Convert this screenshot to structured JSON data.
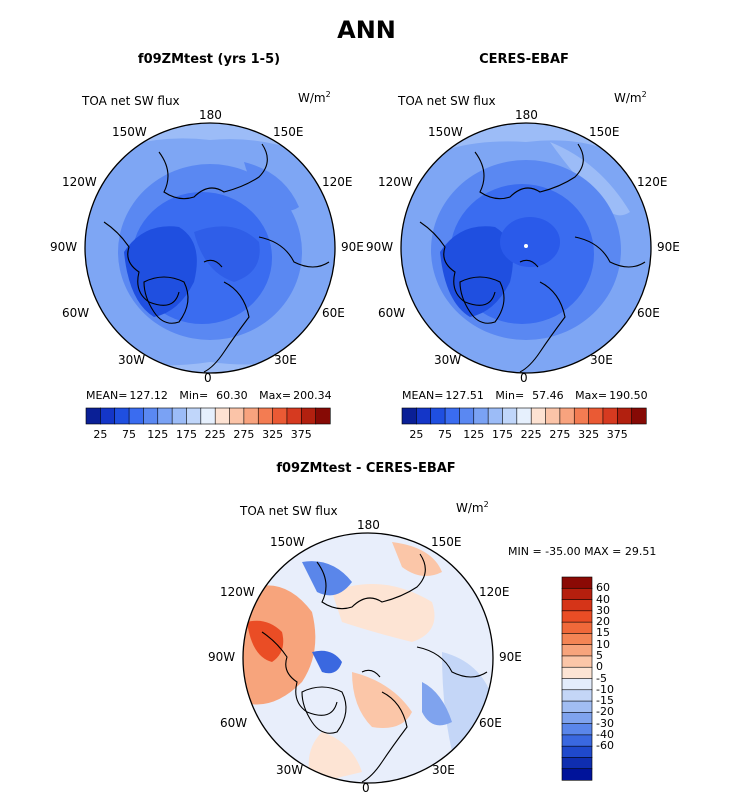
{
  "figure": {
    "title": "ANN"
  },
  "panels": [
    {
      "title": "f09ZMtest (yrs 1-5)",
      "variable": "TOA net SW flux",
      "units_base": "W/m",
      "units_exp": "2",
      "stats": {
        "mean_label": "MEAN=",
        "mean": "127.12",
        "min_label": "Min=",
        "min": "60.30",
        "max_label": "Max=",
        "max": "200.34"
      }
    },
    {
      "title": "CERES-EBAF",
      "variable": "TOA net SW flux",
      "units_base": "W/m",
      "units_exp": "2",
      "stats": {
        "mean_label": "MEAN=",
        "mean": "127.51",
        "min_label": "Min=",
        "min": "57.46",
        "max_label": "Max=",
        "max": "190.50"
      }
    },
    {
      "title": "f09ZMtest - CERES-EBAF",
      "variable": "TOA net SW flux",
      "units_base": "W/m",
      "units_exp": "2",
      "stats_text": "MIN = -35.00 MAX =   29.51"
    }
  ],
  "longitude_labels": {
    "top": "180",
    "bottom": "0",
    "e150": "150E",
    "e120": "120E",
    "e90": "90E",
    "e60": "60E",
    "e30": "30E",
    "w150": "150W",
    "w120": "120W",
    "w90": "90W",
    "w60": "60W",
    "w30": "30W"
  },
  "colorbar_main": {
    "tick_labels": [
      "25",
      "75",
      "125",
      "175",
      "225",
      "275",
      "325",
      "375"
    ],
    "colors": [
      "#0a1f96",
      "#1436c8",
      "#1f4fe0",
      "#3a6cf0",
      "#5a88f2",
      "#7aa2f4",
      "#9cbcf7",
      "#c0d6fa",
      "#e6f0fd",
      "#fde2d2",
      "#fbc4a8",
      "#f8a37e",
      "#f37c52",
      "#ea5a34",
      "#d63a20",
      "#b2200f",
      "#860a05"
    ]
  },
  "colorbar_diff": {
    "tick_labels": [
      "60",
      "40",
      "30",
      "20",
      "15",
      "10",
      "5",
      "0",
      "-5",
      "-10",
      "-15",
      "-20",
      "-30",
      "-40",
      "-60"
    ],
    "colors": [
      "#8b0a05",
      "#b51f0e",
      "#d53418",
      "#ea4d25",
      "#f0693a",
      "#f48555",
      "#f7a47c",
      "#fbc6a8",
      "#fde4d4",
      "#e3ecfb",
      "#c4d6f7",
      "#a1bdf2",
      "#7fa3ee",
      "#5a86ea",
      "#3a68e0",
      "#1f49cc",
      "#0f2eb0",
      "#00139a"
    ]
  },
  "chart_data": [
    {
      "type": "heatmap",
      "title": "f09ZMtest (yrs 1-5)",
      "subtitle": "TOA net SW flux",
      "units": "W/m^2",
      "projection": "north polar stereographic",
      "stats": {
        "mean": 127.12,
        "min": 60.3,
        "max": 200.34
      },
      "colorbar_levels": [
        25,
        75,
        125,
        175,
        225,
        275,
        325,
        375
      ]
    },
    {
      "type": "heatmap",
      "title": "CERES-EBAF",
      "subtitle": "TOA net SW flux",
      "units": "W/m^2",
      "projection": "north polar stereographic",
      "stats": {
        "mean": 127.51,
        "min": 57.46,
        "max": 190.5
      },
      "colorbar_levels": [
        25,
        75,
        125,
        175,
        225,
        275,
        325,
        375
      ]
    },
    {
      "type": "heatmap",
      "title": "f09ZMtest - CERES-EBAF",
      "subtitle": "TOA net SW flux",
      "units": "W/m^2",
      "projection": "north polar stereographic",
      "stats": {
        "min": -35.0,
        "max": 29.51
      },
      "colorbar_levels": [
        60,
        40,
        30,
        20,
        15,
        10,
        5,
        0,
        -5,
        -10,
        -15,
        -20,
        -30,
        -40,
        -60
      ]
    }
  ]
}
